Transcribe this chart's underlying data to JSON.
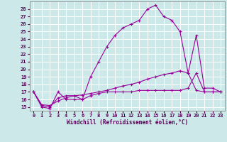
{
  "xlabel": "Windchill (Refroidissement éolien,°C)",
  "background_color": "#cce8e8",
  "grid_color": "#ffffff",
  "line_color": "#990099",
  "xlim": [
    -0.5,
    23.5
  ],
  "ylim": [
    14.5,
    29.0
  ],
  "xticks": [
    0,
    1,
    2,
    3,
    4,
    5,
    6,
    7,
    8,
    9,
    10,
    11,
    12,
    13,
    14,
    15,
    16,
    17,
    18,
    19,
    20,
    21,
    22,
    23
  ],
  "yticks": [
    15,
    16,
    17,
    18,
    19,
    20,
    21,
    22,
    23,
    24,
    25,
    26,
    27,
    28
  ],
  "line1_x": [
    0,
    1,
    2,
    3,
    4,
    5,
    6,
    7,
    8,
    9,
    10,
    11,
    12,
    13,
    14,
    15,
    16,
    17,
    18,
    19,
    20,
    21,
    22,
    23
  ],
  "line1_y": [
    17.0,
    15.0,
    14.8,
    17.0,
    16.0,
    16.0,
    16.0,
    19.0,
    21.0,
    23.0,
    24.5,
    25.5,
    26.0,
    26.5,
    28.0,
    28.5,
    27.0,
    26.5,
    25.0,
    19.5,
    24.5,
    17.5,
    17.5,
    17.0
  ],
  "line2_x": [
    0,
    1,
    2,
    3,
    4,
    5,
    6,
    7,
    8,
    9,
    10,
    11,
    12,
    13,
    14,
    15,
    16,
    17,
    18,
    19,
    20,
    21,
    22,
    23
  ],
  "line2_y": [
    17.0,
    15.2,
    15.0,
    16.2,
    16.5,
    16.5,
    16.0,
    16.5,
    16.8,
    17.0,
    17.0,
    17.0,
    17.0,
    17.2,
    17.2,
    17.2,
    17.2,
    17.2,
    17.2,
    17.5,
    19.5,
    17.0,
    17.0,
    17.0
  ],
  "line3_x": [
    0,
    1,
    2,
    3,
    4,
    5,
    6,
    7,
    8,
    9,
    10,
    11,
    12,
    13,
    14,
    15,
    16,
    17,
    18,
    19,
    20,
    21,
    22,
    23
  ],
  "line3_y": [
    17.0,
    15.3,
    15.2,
    15.8,
    16.2,
    16.5,
    16.6,
    16.8,
    17.0,
    17.2,
    17.5,
    17.8,
    18.0,
    18.3,
    18.7,
    19.0,
    19.3,
    19.5,
    19.8,
    19.5,
    17.2,
    17.0,
    17.0,
    17.0
  ]
}
